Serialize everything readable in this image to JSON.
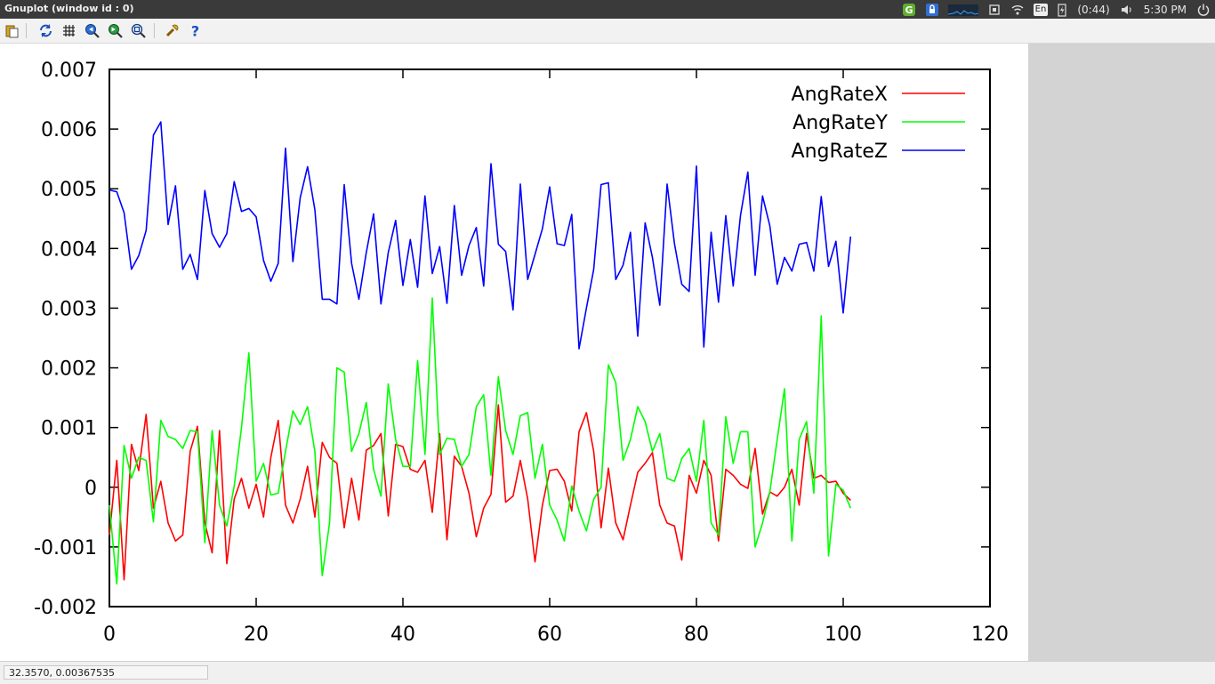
{
  "window": {
    "title": "Gnuplot (window id : 0)"
  },
  "tray": {
    "keyboard_layout": "En",
    "battery_time": "(0:44)",
    "clock": "5:30 PM"
  },
  "toolbar": {
    "icons": [
      "copy-clipboard-icon",
      "replot-icon",
      "grid-icon",
      "zoom-prev-icon",
      "zoom-next-icon",
      "autoscale-icon",
      "options-icon",
      "help-icon"
    ]
  },
  "status": {
    "coordinates": "32.3570,  0.00367535"
  },
  "colors": {
    "AngRateX": "#ff0000",
    "AngRateY": "#00ff00",
    "AngRateZ": "#0000ff",
    "gray_area": "#d3d3d3"
  },
  "chart_data": {
    "type": "line",
    "title": "",
    "xlabel": "",
    "ylabel": "",
    "xlim": [
      0,
      120
    ],
    "ylim": [
      -0.002,
      0.007
    ],
    "x_ticks": [
      0,
      20,
      40,
      60,
      80,
      100,
      120
    ],
    "y_ticks": [
      -0.002,
      -0.001,
      0,
      0.001,
      0.002,
      0.003,
      0.004,
      0.005,
      0.006,
      0.007
    ],
    "x_tick_labels": [
      "0",
      "20",
      "40",
      "60",
      "80",
      "100",
      "120"
    ],
    "y_tick_labels": [
      "-0.002",
      "-0.001",
      "0",
      "0.001",
      "0.002",
      "0.003",
      "0.004",
      "0.005",
      "0.006",
      "0.007"
    ],
    "grid": false,
    "legend_position": "top-right",
    "x": [
      0,
      1,
      2,
      3,
      4,
      5,
      6,
      7,
      8,
      9,
      10,
      11,
      12,
      13,
      14,
      15,
      16,
      17,
      18,
      19,
      20,
      21,
      22,
      23,
      24,
      25,
      26,
      27,
      28,
      29,
      30,
      31,
      32,
      33,
      34,
      35,
      36,
      37,
      38,
      39,
      40,
      41,
      42,
      43,
      44,
      45,
      46,
      47,
      48,
      49,
      50,
      51,
      52,
      53,
      54,
      55,
      56,
      57,
      58,
      59,
      60,
      61,
      62,
      63,
      64,
      65,
      66,
      67,
      68,
      69,
      70,
      71,
      72,
      73,
      74,
      75,
      76,
      77,
      78,
      79,
      80,
      81,
      82,
      83,
      84,
      85,
      86,
      87,
      88,
      89,
      90,
      91,
      92,
      93,
      94,
      95,
      96,
      97,
      98,
      99,
      100,
      101
    ],
    "series": [
      {
        "name": "AngRateX",
        "color": "#ff0000",
        "values": [
          -0.0008,
          0.00045,
          -0.00155,
          0.00072,
          0.00028,
          0.00122,
          -0.00035,
          0.0001,
          -0.0006,
          -0.0009,
          -0.0008,
          0.0006,
          0.00102,
          -0.0006,
          -0.0011,
          0.00095,
          -0.00128,
          -0.0002,
          0.00015,
          -0.00035,
          5e-05,
          -0.0005,
          0.0005,
          0.00112,
          -0.0003,
          -0.0006,
          -0.0002,
          0.00035,
          -0.0005,
          0.00075,
          0.0005,
          0.0004,
          -0.00068,
          0.00015,
          -0.00055,
          0.00062,
          0.0007,
          0.0009,
          -0.00048,
          0.00072,
          0.00068,
          0.0003,
          0.00025,
          0.00045,
          -0.00042,
          0.0009,
          -0.00088,
          0.00052,
          0.00035,
          -0.0001,
          -0.00083,
          -0.00035,
          -0.00012,
          0.00138,
          -0.00025,
          -0.00015,
          0.00045,
          -0.0002,
          -0.00125,
          -0.0003,
          0.00028,
          0.0003,
          0.0001,
          -0.0004,
          0.00093,
          0.00125,
          0.0006,
          -0.00068,
          0.00032,
          -0.0006,
          -0.00088,
          -0.0003,
          0.00025,
          0.0004,
          0.00058,
          -0.0003,
          -0.0006,
          -0.00065,
          -0.00122,
          0.0002,
          -0.0001,
          0.00045,
          0.0002,
          -0.0009,
          0.0003,
          0.0002,
          5e-05,
          -2e-05,
          0.00065,
          -0.00045,
          -8e-05,
          -0.00015,
          0.0,
          0.0003,
          -0.0003,
          0.0009,
          0.00015,
          0.0002,
          8e-05,
          0.0001,
          -0.0001,
          -0.00022
        ]
      },
      {
        "name": "AngRateY",
        "color": "#00ff00",
        "values": [
          -0.0003,
          -0.00162,
          0.0007,
          0.00015,
          0.0005,
          0.00045,
          -0.00058,
          0.00112,
          0.00085,
          0.0008,
          0.00065,
          0.00095,
          0.00093,
          -0.00093,
          0.00095,
          -0.0003,
          -0.00065,
          2e-05,
          0.001,
          0.00225,
          0.0001,
          0.0004,
          -0.00013,
          -0.0001,
          0.0006,
          0.00128,
          0.00105,
          0.00135,
          0.0006,
          -0.00148,
          -0.0006,
          0.002,
          0.00193,
          0.0006,
          0.0009,
          0.00142,
          0.0003,
          -0.00015,
          0.00173,
          0.0008,
          0.00035,
          0.00035,
          0.00212,
          0.00055,
          0.00317,
          0.00055,
          0.00082,
          0.0008,
          0.00035,
          0.00055,
          0.00135,
          0.00155,
          0.0002,
          0.00185,
          0.00095,
          0.00055,
          0.0012,
          0.00125,
          0.00015,
          0.00072,
          -0.0003,
          -0.00055,
          -0.0009,
          2e-05,
          -0.0004,
          -0.00073,
          -0.0002,
          0.0,
          0.00205,
          0.00175,
          0.00045,
          0.0008,
          0.00135,
          0.0011,
          0.0006,
          0.0009,
          0.00015,
          0.0001,
          0.00048,
          0.00065,
          0.0001,
          0.00112,
          -0.0006,
          -0.0008,
          0.00118,
          0.0004,
          0.00093,
          0.00093,
          -0.001,
          -0.0006,
          -8e-05,
          0.0008,
          0.00165,
          -0.0009,
          0.0008,
          0.0011,
          -0.0001,
          0.00287,
          -0.00115,
          5e-05,
          -5e-05,
          -0.00035
        ]
      },
      {
        "name": "AngRateZ",
        "color": "#0000ff",
        "values": [
          0.00498,
          0.00495,
          0.0046,
          0.00365,
          0.00388,
          0.0043,
          0.0059,
          0.00612,
          0.0044,
          0.00505,
          0.00365,
          0.0039,
          0.00348,
          0.00497,
          0.00425,
          0.00402,
          0.00425,
          0.00512,
          0.00462,
          0.00467,
          0.00453,
          0.0038,
          0.00345,
          0.00375,
          0.00568,
          0.00378,
          0.00485,
          0.00537,
          0.00465,
          0.00315,
          0.00315,
          0.00307,
          0.00507,
          0.00375,
          0.00315,
          0.00393,
          0.00458,
          0.00307,
          0.00393,
          0.00447,
          0.00338,
          0.00415,
          0.00335,
          0.00488,
          0.00358,
          0.00403,
          0.00308,
          0.00472,
          0.00355,
          0.00405,
          0.00435,
          0.00337,
          0.00542,
          0.00407,
          0.00395,
          0.00297,
          0.00508,
          0.00348,
          0.0039,
          0.00433,
          0.00503,
          0.00408,
          0.00405,
          0.00457,
          0.00232,
          0.003,
          0.00365,
          0.00507,
          0.0051,
          0.00348,
          0.00372,
          0.00427,
          0.00253,
          0.00443,
          0.00385,
          0.00305,
          0.00508,
          0.00408,
          0.0034,
          0.00328,
          0.00538,
          0.00235,
          0.00427,
          0.0031,
          0.00455,
          0.00337,
          0.00455,
          0.00528,
          0.00355,
          0.00488,
          0.00438,
          0.0034,
          0.00385,
          0.00362,
          0.00407,
          0.0041,
          0.00362,
          0.00487,
          0.0037,
          0.00412,
          0.00292,
          0.0042
        ]
      }
    ]
  }
}
